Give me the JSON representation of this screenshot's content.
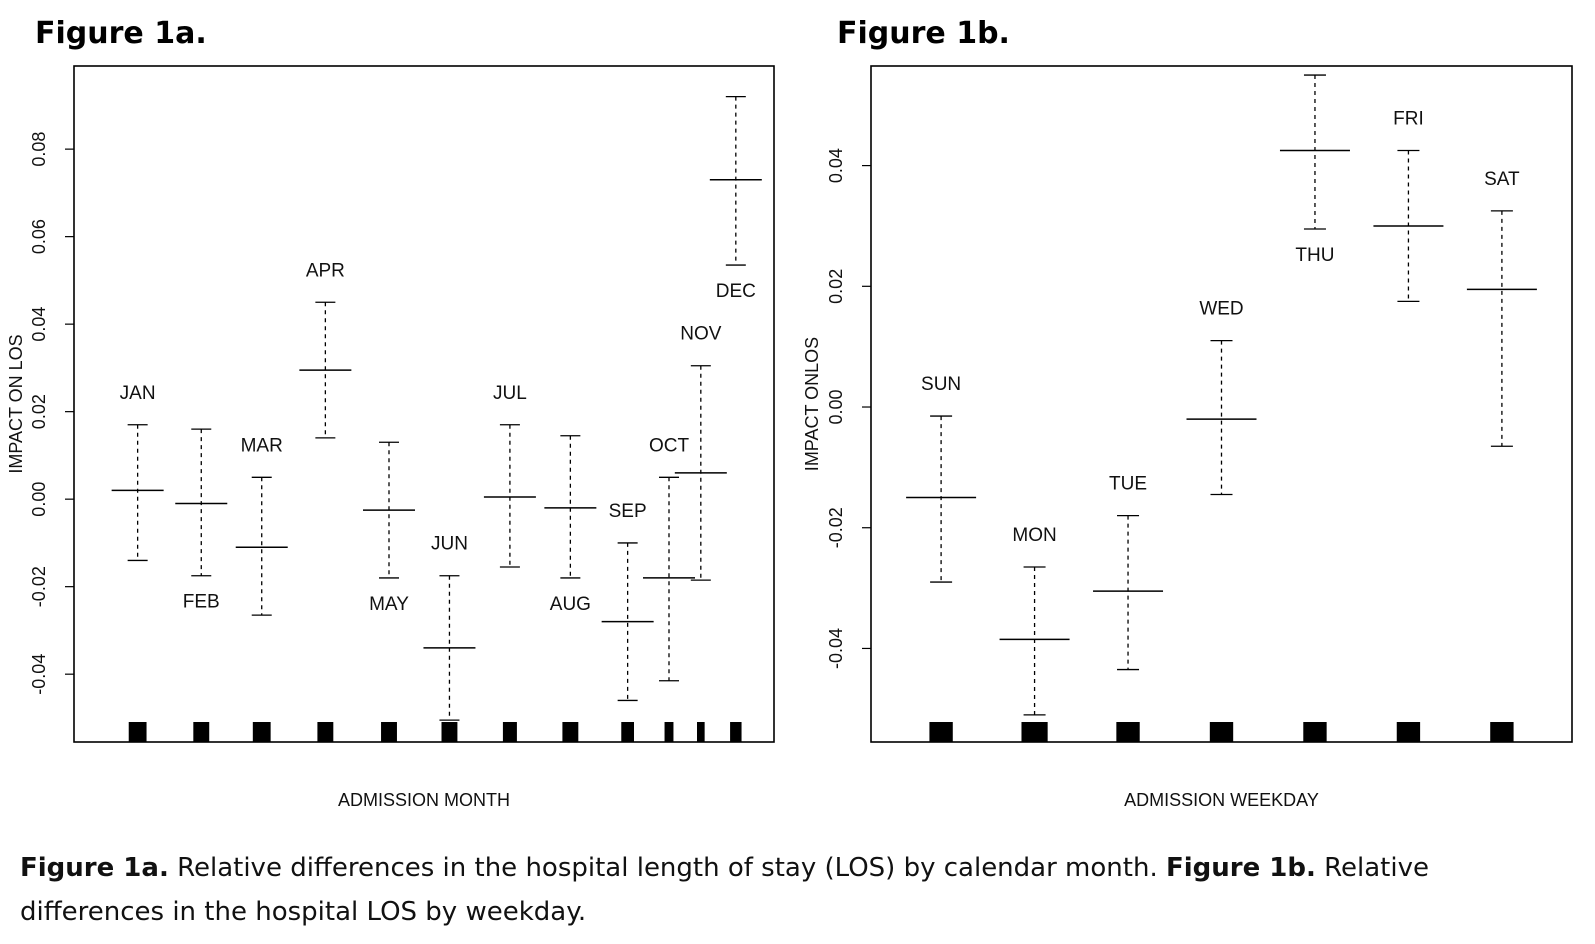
{
  "figures": {
    "a": {
      "title": "Figure 1a."
    },
    "b": {
      "title": "Figure 1b."
    }
  },
  "caption": {
    "a_label": "Figure 1a.",
    "a_text": " Relative differences in the hospital length of stay (LOS) by calendar month. ",
    "b_label": "Figure 1b.",
    "b_text": " Relative differences in the hospital LOS by weekday."
  },
  "chart_data": [
    {
      "type": "errorbar",
      "xlabel": "ADMISSION MONTH",
      "ylabel": "IMPACT ON LOS",
      "ylim": [
        -0.0555,
        0.099
      ],
      "yticks": [
        -0.04,
        -0.02,
        0.0,
        0.02,
        0.04,
        0.06,
        0.08
      ],
      "ytick_labels": [
        "-0.04",
        "-0.02",
        "0.00",
        "0.02",
        "0.04",
        "0.06",
        "0.08"
      ],
      "categories": [
        "JAN",
        "FEB",
        "MAR",
        "APR",
        "MAY",
        "JUN",
        "JUL",
        "AUG",
        "SEP",
        "OCT",
        "NOV",
        "DEC"
      ],
      "x": [
        1.0,
        2.0,
        2.95,
        3.95,
        4.95,
        5.9,
        6.85,
        7.8,
        8.7,
        9.35,
        9.85,
        10.4
      ],
      "estimates": [
        0.002,
        -0.001,
        -0.011,
        0.0295,
        -0.0025,
        -0.034,
        0.0005,
        -0.002,
        -0.028,
        -0.018,
        0.006,
        0.073
      ],
      "lower": [
        -0.014,
        -0.0175,
        -0.0265,
        0.014,
        -0.018,
        -0.0505,
        -0.0155,
        -0.018,
        -0.046,
        -0.0415,
        -0.0185,
        0.0535
      ],
      "upper": [
        0.017,
        0.016,
        0.005,
        0.045,
        0.013,
        -0.0175,
        0.017,
        0.0145,
        -0.01,
        0.005,
        0.0305,
        0.092
      ],
      "label_positions": [
        "above",
        "below",
        "above",
        "above",
        "below",
        "above",
        "above",
        "below",
        "above",
        "above",
        "above",
        "below"
      ],
      "rug_widths": [
        0.28,
        0.25,
        0.28,
        0.25,
        0.25,
        0.25,
        0.22,
        0.25,
        0.2,
        0.14,
        0.12,
        0.18
      ],
      "xlim": [
        0.0,
        11.0
      ]
    },
    {
      "type": "errorbar",
      "xlabel": "ADMISSION WEEKDAY",
      "ylabel": "IMPACT ONLOS",
      "ylim": [
        -0.0555,
        0.0565
      ],
      "yticks": [
        -0.04,
        -0.02,
        0.0,
        0.02,
        0.04
      ],
      "ytick_labels": [
        "-0.04",
        "-0.02",
        "0.00",
        "0.02",
        "0.04"
      ],
      "categories": [
        "SUN",
        "MON",
        "TUE",
        "WED",
        "THU",
        "FRI",
        "SAT"
      ],
      "x": [
        1,
        2,
        3,
        4,
        5,
        6,
        7
      ],
      "estimates": [
        -0.015,
        -0.0385,
        -0.0305,
        -0.002,
        0.0425,
        0.03,
        0.0195
      ],
      "lower": [
        -0.029,
        -0.051,
        -0.0435,
        -0.0145,
        0.0295,
        0.0175,
        -0.0065
      ],
      "upper": [
        -0.0015,
        -0.0265,
        -0.018,
        0.011,
        0.055,
        0.0425,
        0.0325
      ],
      "label_positions": [
        "above",
        "above",
        "above",
        "above",
        "below",
        "above",
        "above"
      ],
      "rug_widths": [
        0.25,
        0.28,
        0.25,
        0.25,
        0.25,
        0.25,
        0.25
      ],
      "xlim": [
        0.25,
        7.75
      ]
    }
  ]
}
